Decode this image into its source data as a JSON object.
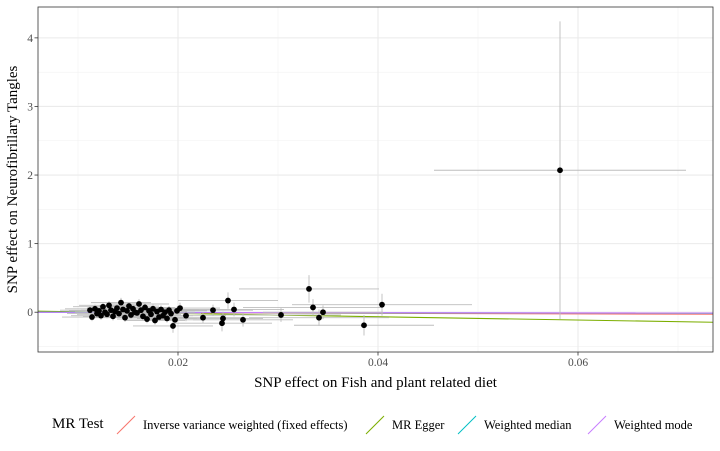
{
  "chart_data": {
    "type": "scatter",
    "xlabel": "SNP effect on Fish and plant related diet",
    "ylabel": "SNP effect on Neurofibrillary Tangles",
    "xlim": [
      0.006,
      0.0735
    ],
    "ylim": [
      -0.58,
      4.45
    ],
    "xticks": [
      0.02,
      0.04,
      0.06
    ],
    "xtick_labels": [
      "0.02",
      "0.04",
      "0.06"
    ],
    "yticks": [
      0,
      1,
      2,
      3,
      4
    ],
    "ytick_labels": [
      "0",
      "1",
      "2",
      "3",
      "4"
    ],
    "grid": true,
    "legend_position": "bottom",
    "points": [
      {
        "x": 0.0582,
        "y": 2.07,
        "xerr": 0.0126,
        "yerr": 2.17
      },
      {
        "x": 0.0404,
        "y": 0.11,
        "xerr": 0.009,
        "yerr": 0.16
      },
      {
        "x": 0.0331,
        "y": 0.34,
        "xerr": 0.007,
        "yerr": 0.2
      },
      {
        "x": 0.0335,
        "y": 0.07,
        "xerr": 0.007,
        "yerr": 0.12
      },
      {
        "x": 0.0341,
        "y": -0.08,
        "xerr": 0.007,
        "yerr": 0.12
      },
      {
        "x": 0.0345,
        "y": 0.0,
        "xerr": 0.006,
        "yerr": 0.1
      },
      {
        "x": 0.0386,
        "y": -0.19,
        "xerr": 0.007,
        "yerr": 0.15
      },
      {
        "x": 0.025,
        "y": 0.17,
        "xerr": 0.005,
        "yerr": 0.12
      },
      {
        "x": 0.0256,
        "y": 0.04,
        "xerr": 0.005,
        "yerr": 0.1
      },
      {
        "x": 0.0244,
        "y": -0.16,
        "xerr": 0.005,
        "yerr": 0.12
      },
      {
        "x": 0.0265,
        "y": -0.11,
        "xerr": 0.005,
        "yerr": 0.1
      },
      {
        "x": 0.0245,
        "y": -0.09,
        "xerr": 0.004,
        "yerr": 0.1
      },
      {
        "x": 0.0303,
        "y": -0.04,
        "xerr": 0.006,
        "yerr": 0.1
      },
      {
        "x": 0.0235,
        "y": 0.03,
        "xerr": 0.004,
        "yerr": 0.08
      },
      {
        "x": 0.0195,
        "y": -0.2,
        "xerr": 0.004,
        "yerr": 0.1
      },
      {
        "x": 0.0225,
        "y": -0.08,
        "xerr": 0.004,
        "yerr": 0.08
      },
      {
        "x": 0.0202,
        "y": 0.06,
        "xerr": 0.004,
        "yerr": 0.08
      },
      {
        "x": 0.0208,
        "y": -0.05,
        "xerr": 0.004,
        "yerr": 0.08
      },
      {
        "x": 0.0112,
        "y": 0.03,
        "xerr": 0.003,
        "yerr": 0.06
      },
      {
        "x": 0.0114,
        "y": -0.07,
        "xerr": 0.003,
        "yerr": 0.06
      },
      {
        "x": 0.0117,
        "y": 0.05,
        "xerr": 0.003,
        "yerr": 0.06
      },
      {
        "x": 0.0119,
        "y": -0.02,
        "xerr": 0.003,
        "yerr": 0.06
      },
      {
        "x": 0.0121,
        "y": 0.02,
        "xerr": 0.003,
        "yerr": 0.06
      },
      {
        "x": 0.0123,
        "y": -0.05,
        "xerr": 0.003,
        "yerr": 0.06
      },
      {
        "x": 0.0125,
        "y": 0.08,
        "xerr": 0.003,
        "yerr": 0.06
      },
      {
        "x": 0.0127,
        "y": 0.0,
        "xerr": 0.003,
        "yerr": 0.06
      },
      {
        "x": 0.0129,
        "y": -0.03,
        "xerr": 0.003,
        "yerr": 0.06
      },
      {
        "x": 0.0131,
        "y": 0.1,
        "xerr": 0.003,
        "yerr": 0.06
      },
      {
        "x": 0.0133,
        "y": 0.03,
        "xerr": 0.003,
        "yerr": 0.06
      },
      {
        "x": 0.0135,
        "y": -0.06,
        "xerr": 0.003,
        "yerr": 0.06
      },
      {
        "x": 0.0137,
        "y": 0.01,
        "xerr": 0.003,
        "yerr": 0.06
      },
      {
        "x": 0.0139,
        "y": 0.06,
        "xerr": 0.003,
        "yerr": 0.06
      },
      {
        "x": 0.0141,
        "y": -0.02,
        "xerr": 0.003,
        "yerr": 0.06
      },
      {
        "x": 0.0143,
        "y": 0.14,
        "xerr": 0.003,
        "yerr": 0.07
      },
      {
        "x": 0.0145,
        "y": 0.04,
        "xerr": 0.003,
        "yerr": 0.06
      },
      {
        "x": 0.0147,
        "y": -0.08,
        "xerr": 0.003,
        "yerr": 0.06
      },
      {
        "x": 0.0149,
        "y": 0.02,
        "xerr": 0.003,
        "yerr": 0.06
      },
      {
        "x": 0.0151,
        "y": 0.09,
        "xerr": 0.003,
        "yerr": 0.06
      },
      {
        "x": 0.0153,
        "y": -0.04,
        "xerr": 0.003,
        "yerr": 0.06
      },
      {
        "x": 0.0155,
        "y": 0.05,
        "xerr": 0.003,
        "yerr": 0.06
      },
      {
        "x": 0.0157,
        "y": 0.0,
        "xerr": 0.003,
        "yerr": 0.06
      },
      {
        "x": 0.0159,
        "y": -0.01,
        "xerr": 0.003,
        "yerr": 0.06
      },
      {
        "x": 0.0161,
        "y": 0.12,
        "xerr": 0.003,
        "yerr": 0.07
      },
      {
        "x": 0.0163,
        "y": 0.03,
        "xerr": 0.003,
        "yerr": 0.06
      },
      {
        "x": 0.0165,
        "y": -0.06,
        "xerr": 0.003,
        "yerr": 0.06
      },
      {
        "x": 0.0167,
        "y": 0.07,
        "xerr": 0.003,
        "yerr": 0.06
      },
      {
        "x": 0.0169,
        "y": -0.1,
        "xerr": 0.003,
        "yerr": 0.06
      },
      {
        "x": 0.0171,
        "y": 0.02,
        "xerr": 0.003,
        "yerr": 0.06
      },
      {
        "x": 0.0173,
        "y": -0.03,
        "xerr": 0.003,
        "yerr": 0.06
      },
      {
        "x": 0.0175,
        "y": 0.05,
        "xerr": 0.003,
        "yerr": 0.06
      },
      {
        "x": 0.0177,
        "y": -0.12,
        "xerr": 0.003,
        "yerr": 0.06
      },
      {
        "x": 0.0179,
        "y": 0.01,
        "xerr": 0.003,
        "yerr": 0.06
      },
      {
        "x": 0.0181,
        "y": -0.07,
        "xerr": 0.003,
        "yerr": 0.06
      },
      {
        "x": 0.0183,
        "y": 0.04,
        "xerr": 0.003,
        "yerr": 0.06
      },
      {
        "x": 0.0185,
        "y": -0.05,
        "xerr": 0.003,
        "yerr": 0.06
      },
      {
        "x": 0.0187,
        "y": 0.0,
        "xerr": 0.003,
        "yerr": 0.06
      },
      {
        "x": 0.0189,
        "y": -0.09,
        "xerr": 0.003,
        "yerr": 0.06
      },
      {
        "x": 0.0191,
        "y": 0.03,
        "xerr": 0.003,
        "yerr": 0.06
      },
      {
        "x": 0.0193,
        "y": -0.02,
        "xerr": 0.003,
        "yerr": 0.06
      },
      {
        "x": 0.0197,
        "y": -0.11,
        "xerr": 0.003,
        "yerr": 0.06
      },
      {
        "x": 0.0199,
        "y": 0.02,
        "xerr": 0.003,
        "yerr": 0.06
      }
    ],
    "series": [
      {
        "name": "Inverse variance weighted (fixed effects)",
        "slope": -0.4,
        "intercept": 0,
        "color": "#F8766D"
      },
      {
        "name": "MR Egger",
        "slope": -2.4,
        "intercept": 0.03,
        "color": "#7CAE00"
      },
      {
        "name": "Weighted median",
        "slope": -0.2,
        "intercept": 0,
        "color": "#00BFC4"
      },
      {
        "name": "Weighted mode",
        "slope": -0.15,
        "intercept": 0,
        "color": "#C77CFF"
      }
    ]
  },
  "legend": {
    "title": "MR Test",
    "items": [
      {
        "label": "Inverse variance weighted (fixed effects)",
        "color": "#F8766D"
      },
      {
        "label": "MR Egger",
        "color": "#7CAE00"
      },
      {
        "label": "Weighted median",
        "color": "#00BFC4"
      },
      {
        "label": "Weighted mode",
        "color": "#C77CFF"
      }
    ]
  }
}
